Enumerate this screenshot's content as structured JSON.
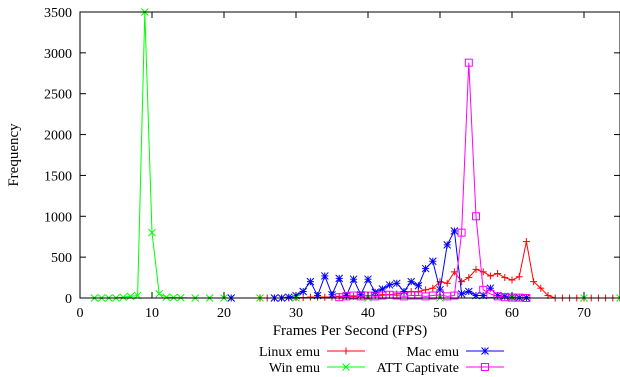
{
  "chart_data": {
    "type": "line",
    "title": "",
    "xlabel": "Frames Per Second (FPS)",
    "ylabel": "Frequency",
    "xlim": [
      0,
      75
    ],
    "ylim": [
      0,
      3500
    ],
    "xticks": [
      0,
      10,
      20,
      30,
      40,
      50,
      60,
      70
    ],
    "yticks": [
      0,
      500,
      1000,
      1500,
      2000,
      2500,
      3000,
      3500
    ],
    "grid": false,
    "legend_position": "bottom-center",
    "series": [
      {
        "name": "Linux emu",
        "color": "#ff0000",
        "marker": "plus",
        "x": [
          25,
          26,
          27,
          28,
          29,
          30,
          31,
          32,
          33,
          34,
          35,
          36,
          37,
          38,
          39,
          40,
          41,
          42,
          43,
          44,
          45,
          46,
          47,
          48,
          49,
          50,
          51,
          52,
          53,
          54,
          55,
          56,
          57,
          58,
          59,
          60,
          61,
          62,
          63,
          64,
          65,
          66,
          67,
          68,
          69,
          70,
          71,
          72,
          73,
          74,
          75
        ],
        "y": [
          0,
          0,
          0,
          0,
          0,
          5,
          5,
          10,
          10,
          10,
          10,
          20,
          20,
          20,
          20,
          30,
          30,
          40,
          40,
          50,
          60,
          80,
          80,
          100,
          120,
          200,
          180,
          320,
          200,
          250,
          350,
          320,
          270,
          300,
          250,
          220,
          260,
          690,
          200,
          120,
          30,
          0,
          0,
          0,
          0,
          0,
          0,
          0,
          0,
          0,
          0
        ]
      },
      {
        "name": "Mac emu",
        "color": "#0000ff",
        "marker": "star",
        "x": [
          21,
          27,
          28,
          29,
          30,
          31,
          32,
          33,
          34,
          35,
          36,
          37,
          38,
          39,
          40,
          41,
          42,
          43,
          44,
          45,
          46,
          47,
          48,
          49,
          50,
          51,
          52,
          53,
          54,
          55,
          56,
          57,
          58,
          59,
          60,
          61,
          62
        ],
        "y": [
          0,
          0,
          0,
          10,
          30,
          80,
          200,
          30,
          270,
          40,
          240,
          30,
          230,
          40,
          230,
          70,
          110,
          160,
          180,
          80,
          200,
          150,
          360,
          450,
          100,
          650,
          820,
          50,
          80,
          30,
          30,
          120,
          30,
          20,
          10,
          5,
          5
        ]
      },
      {
        "name": "Win emu",
        "color": "#00ff00",
        "marker": "x",
        "x": [
          2,
          3,
          4,
          5,
          6,
          7,
          8,
          9,
          10,
          11,
          12,
          13,
          14,
          16,
          18,
          20,
          25,
          30,
          40,
          50,
          60,
          70,
          75
        ],
        "y": [
          0,
          0,
          0,
          0,
          10,
          20,
          30,
          3500,
          800,
          50,
          10,
          5,
          5,
          0,
          0,
          0,
          0,
          0,
          0,
          0,
          0,
          0,
          0
        ]
      },
      {
        "name": "ATT Captivate",
        "color": "#ff00ff",
        "marker": "square",
        "x": [
          36,
          37,
          38,
          39,
          40,
          41,
          42,
          43,
          44,
          45,
          46,
          47,
          48,
          49,
          50,
          51,
          52,
          53,
          54,
          55,
          56,
          57,
          58,
          59,
          60,
          61,
          62
        ],
        "y": [
          10,
          20,
          30,
          20,
          30,
          20,
          30,
          40,
          30,
          20,
          30,
          30,
          20,
          30,
          40,
          20,
          30,
          800,
          2880,
          1000,
          100,
          50,
          20,
          10,
          5,
          5,
          0
        ]
      }
    ],
    "legend_order": [
      "Linux emu",
      "Mac emu",
      "Win emu",
      "ATT Captivate"
    ]
  }
}
